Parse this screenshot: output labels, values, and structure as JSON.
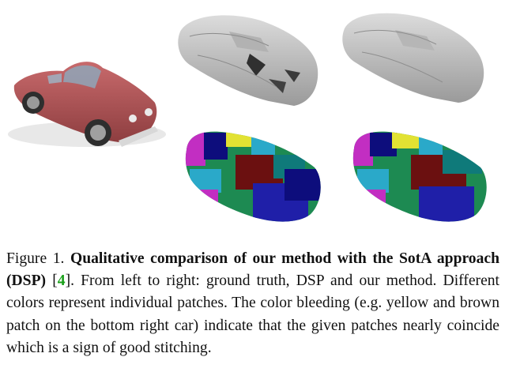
{
  "figure": {
    "panels": [
      "ground-truth",
      "dsp-shape",
      "ours-shape",
      "dsp-patches",
      "ours-patches"
    ],
    "colors": {
      "gt_body": "#b85a5c",
      "gray_mesh": "#c4c4c4",
      "patch_green": "#1d8a52",
      "patch_yellow": "#e2e233",
      "patch_brown": "#6b1010",
      "patch_blue": "#1f1fa8",
      "patch_magenta": "#c22ec2",
      "patch_cyan": "#2aa9c9",
      "patch_teal": "#0f7a7a",
      "patch_darkblue": "#0d0d7c"
    }
  },
  "caption": {
    "label": "Figure 1.",
    "title": "Qualitative comparison of our method with the SotA approach (DSP)",
    "cite_open": "[",
    "cite_num": "4",
    "cite_close": "].",
    "body": "From left to right: ground truth, DSP and our method. Different colors represent individual patches. The color bleeding (e.g. yellow and brown patch on the bottom right car) indicate that the given patches nearly coincide which is a sign of good stitching."
  }
}
